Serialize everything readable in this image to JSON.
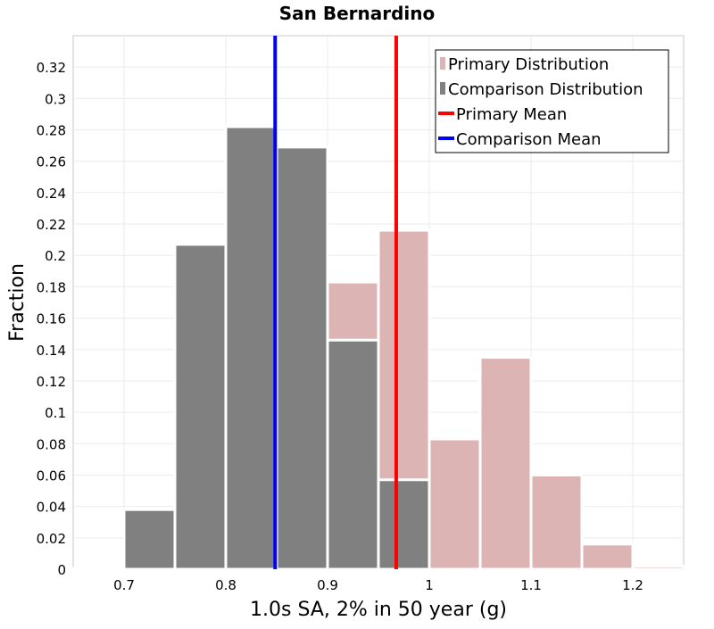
{
  "chart_data": {
    "type": "bar",
    "title": "San Bernardino",
    "xlabel": "1.0s SA, 2% in 50 year (g)",
    "ylabel": "Fraction",
    "xlim": [
      0.65,
      1.25
    ],
    "ylim": [
      0,
      0.34
    ],
    "bin_width": 0.05,
    "x_ticks": [
      "0.7",
      "0.8",
      "0.9",
      "1",
      "1.1",
      "1.2"
    ],
    "x_tick_values": [
      0.7,
      0.8,
      0.9,
      1.0,
      1.1,
      1.2
    ],
    "y_ticks": [
      "0",
      "0.02",
      "0.04",
      "0.06",
      "0.08",
      "0.1",
      "0.12",
      "0.14",
      "0.16",
      "0.18",
      "0.2",
      "0.22",
      "0.24",
      "0.26",
      "0.28",
      "0.3",
      "0.32"
    ],
    "y_tick_values": [
      0,
      0.02,
      0.04,
      0.06,
      0.08,
      0.1,
      0.12,
      0.14,
      0.16,
      0.18,
      0.2,
      0.22,
      0.24,
      0.26,
      0.28,
      0.3,
      0.32
    ],
    "grid": true,
    "legend_position": "top-right",
    "series": [
      {
        "name": "Primary Distribution",
        "kind": "histogram",
        "color": "#dcb4b4",
        "bins": [
          {
            "x": 0.925,
            "value": 0.183
          },
          {
            "x": 0.975,
            "value": 0.216
          },
          {
            "x": 1.025,
            "value": 0.083
          },
          {
            "x": 1.075,
            "value": 0.135
          },
          {
            "x": 1.125,
            "value": 0.06
          },
          {
            "x": 1.175,
            "value": 0.016
          },
          {
            "x": 1.225,
            "value": 0.002
          }
        ]
      },
      {
        "name": "Comparison Distribution",
        "kind": "histogram",
        "color": "#808080",
        "bins": [
          {
            "x": 0.675,
            "value": 0.0005
          },
          {
            "x": 0.725,
            "value": 0.038
          },
          {
            "x": 0.775,
            "value": 0.207
          },
          {
            "x": 0.825,
            "value": 0.282
          },
          {
            "x": 0.875,
            "value": 0.269
          },
          {
            "x": 0.925,
            "value": 0.146
          },
          {
            "x": 0.975,
            "value": 0.057
          }
        ]
      },
      {
        "name": "Primary Mean",
        "kind": "vline",
        "color": "#ff0000",
        "x": 0.9675
      },
      {
        "name": "Comparison Mean",
        "kind": "vline",
        "color": "#0000ff",
        "x": 0.8485
      }
    ]
  }
}
